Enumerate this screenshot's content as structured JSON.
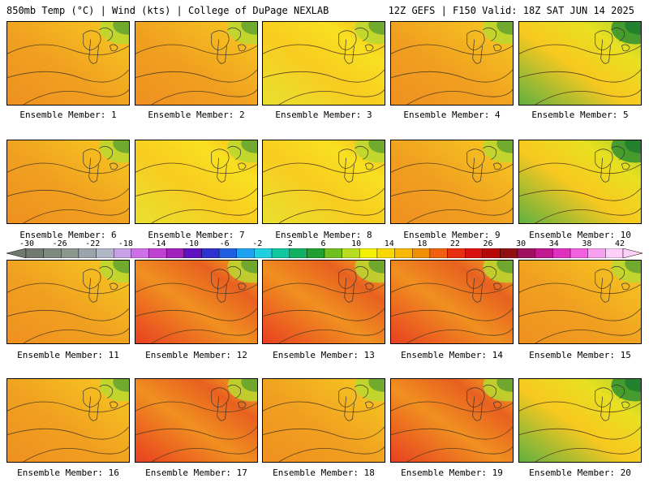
{
  "header": {
    "left": "850mb Temp (°C) | Wind (kts) | College of DuPage NEXLAB",
    "right": "12Z GEFS | F150 Valid: 18Z SAT JUN 14 2025"
  },
  "colorbar": {
    "tick_labels": [
      "-30",
      "-26",
      "-22",
      "-18",
      "-14",
      "-10",
      "-6",
      "-2",
      "2",
      "6",
      "10",
      "14",
      "18",
      "22",
      "26",
      "30",
      "34",
      "38",
      "42"
    ],
    "colors": [
      "#707a70",
      "#7e887e",
      "#8c968c",
      "#9aa4aa",
      "#b0b8c8",
      "#c8a0e8",
      "#d070e8",
      "#c040d0",
      "#a020c0",
      "#6010c0",
      "#3030d0",
      "#2060e0",
      "#20a0f0",
      "#20d0e0",
      "#10c8a0",
      "#10b060",
      "#20a030",
      "#70c020",
      "#b8dc20",
      "#f0f000",
      "#f8d800",
      "#f8b800",
      "#f09000",
      "#f06010",
      "#e83010",
      "#d81010",
      "#b80808",
      "#901010",
      "#a01060",
      "#c01890",
      "#e030c0",
      "#f060e0",
      "#f8a0f0",
      "#ffd0f8"
    ]
  },
  "panels": [
    {
      "label": "Ensemble Member: 1",
      "scheme": "warm"
    },
    {
      "label": "Ensemble Member: 2",
      "scheme": "warm"
    },
    {
      "label": "Ensemble Member: 3",
      "scheme": "mild"
    },
    {
      "label": "Ensemble Member: 4",
      "scheme": "warm"
    },
    {
      "label": "Ensemble Member: 5",
      "scheme": "cool"
    },
    {
      "label": "Ensemble Member: 6",
      "scheme": "warm"
    },
    {
      "label": "Ensemble Member: 7",
      "scheme": "mild"
    },
    {
      "label": "Ensemble Member: 8",
      "scheme": "mild"
    },
    {
      "label": "Ensemble Member: 9",
      "scheme": "warm"
    },
    {
      "label": "Ensemble Member: 10",
      "scheme": "cool"
    },
    {
      "label": "Ensemble Member: 11",
      "scheme": "warm"
    },
    {
      "label": "Ensemble Member: 12",
      "scheme": "hot"
    },
    {
      "label": "Ensemble Member: 13",
      "scheme": "hot"
    },
    {
      "label": "Ensemble Member: 14",
      "scheme": "hot"
    },
    {
      "label": "Ensemble Member: 15",
      "scheme": "warm"
    },
    {
      "label": "Ensemble Member: 16",
      "scheme": "warm"
    },
    {
      "label": "Ensemble Member: 17",
      "scheme": "hot"
    },
    {
      "label": "Ensemble Member: 18",
      "scheme": "warm"
    },
    {
      "label": "Ensemble Member: 19",
      "scheme": "hot"
    },
    {
      "label": "Ensemble Member: 20",
      "scheme": "cool"
    }
  ]
}
